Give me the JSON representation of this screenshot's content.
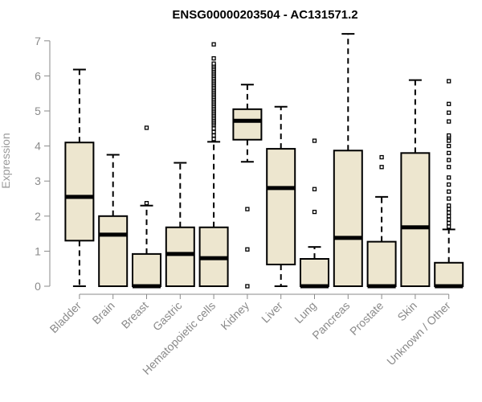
{
  "chart_data": {
    "type": "boxplot",
    "title": "ENSG00000203504 - AC131571.2",
    "xlabel": "",
    "ylabel": "Expression",
    "ylim": [
      0,
      7
    ],
    "yticks": [
      0,
      1,
      2,
      3,
      4,
      5,
      6,
      7
    ],
    "categories": [
      "Bladder",
      "Brain",
      "Breast",
      "Gastric",
      "Hematopoietic cells",
      "Kidney",
      "Liver",
      "Lung",
      "Pancreas",
      "Prostate",
      "Skin",
      "Unknown / Other"
    ],
    "boxes": [
      {
        "category": "Bladder",
        "whisker_low": 0.0,
        "q1": 1.3,
        "median": 2.55,
        "q3": 4.1,
        "whisker_high": 6.18,
        "outliers": []
      },
      {
        "category": "Brain",
        "whisker_low": 0.0,
        "q1": 0.0,
        "median": 1.47,
        "q3": 2.0,
        "whisker_high": 3.75,
        "outliers": []
      },
      {
        "category": "Breast",
        "whisker_low": 0.0,
        "q1": 0.0,
        "median": 0.0,
        "q3": 0.92,
        "whisker_high": 2.3,
        "outliers": [
          2.37,
          4.52
        ]
      },
      {
        "category": "Gastric",
        "whisker_low": 0.0,
        "q1": 0.0,
        "median": 0.92,
        "q3": 1.68,
        "whisker_high": 3.52,
        "outliers": []
      },
      {
        "category": "Hematopoietic cells",
        "whisker_low": 0.0,
        "q1": 0.0,
        "median": 0.8,
        "q3": 1.68,
        "whisker_high": 4.12,
        "outliers": [
          4.2,
          4.3,
          4.4,
          4.5,
          4.6,
          4.65,
          4.7,
          4.75,
          4.8,
          4.85,
          4.9,
          4.95,
          5.0,
          5.05,
          5.1,
          5.15,
          5.2,
          5.25,
          5.3,
          5.35,
          5.4,
          5.45,
          5.5,
          5.55,
          5.6,
          5.65,
          5.7,
          5.75,
          5.8,
          5.85,
          5.9,
          5.95,
          6.0,
          6.05,
          6.1,
          6.15,
          6.2,
          6.25,
          6.3,
          6.35,
          6.5,
          6.9
        ]
      },
      {
        "category": "Kidney",
        "whisker_low": 3.55,
        "q1": 4.18,
        "median": 4.72,
        "q3": 5.05,
        "whisker_high": 5.75,
        "outliers": [
          2.2,
          1.05,
          0.0
        ]
      },
      {
        "category": "Liver",
        "whisker_low": 0.0,
        "q1": 0.62,
        "median": 2.8,
        "q3": 3.92,
        "whisker_high": 5.12,
        "outliers": []
      },
      {
        "category": "Lung",
        "whisker_low": 0.0,
        "q1": 0.0,
        "median": 0.0,
        "q3": 0.78,
        "whisker_high": 1.12,
        "outliers": [
          2.12,
          2.77,
          4.15
        ]
      },
      {
        "category": "Pancreas",
        "whisker_low": 0.0,
        "q1": 0.0,
        "median": 1.38,
        "q3": 3.87,
        "whisker_high": 7.2,
        "outliers": []
      },
      {
        "category": "Prostate",
        "whisker_low": 0.0,
        "q1": 0.0,
        "median": 0.0,
        "q3": 1.27,
        "whisker_high": 2.55,
        "outliers": [
          3.4,
          3.68
        ]
      },
      {
        "category": "Skin",
        "whisker_low": 0.0,
        "q1": 0.0,
        "median": 1.68,
        "q3": 3.8,
        "whisker_high": 5.88,
        "outliers": []
      },
      {
        "category": "Unknown / Other",
        "whisker_low": 0.0,
        "q1": 0.0,
        "median": 0.0,
        "q3": 0.67,
        "whisker_high": 1.62,
        "outliers": [
          1.7,
          1.8,
          1.9,
          2.0,
          2.1,
          2.2,
          2.3,
          2.5,
          2.7,
          2.9,
          3.1,
          3.4,
          3.6,
          3.8,
          4.0,
          4.15,
          4.25,
          4.3,
          4.7,
          4.95,
          5.2,
          5.85
        ]
      }
    ],
    "colors": {
      "box_fill": "#ede6cf",
      "box_stroke": "#000000",
      "median": "#000000",
      "axis": "#8a8a8a",
      "axis_text": "#8a8a8a",
      "title": "#000000"
    },
    "grid": false,
    "legend": "none"
  }
}
